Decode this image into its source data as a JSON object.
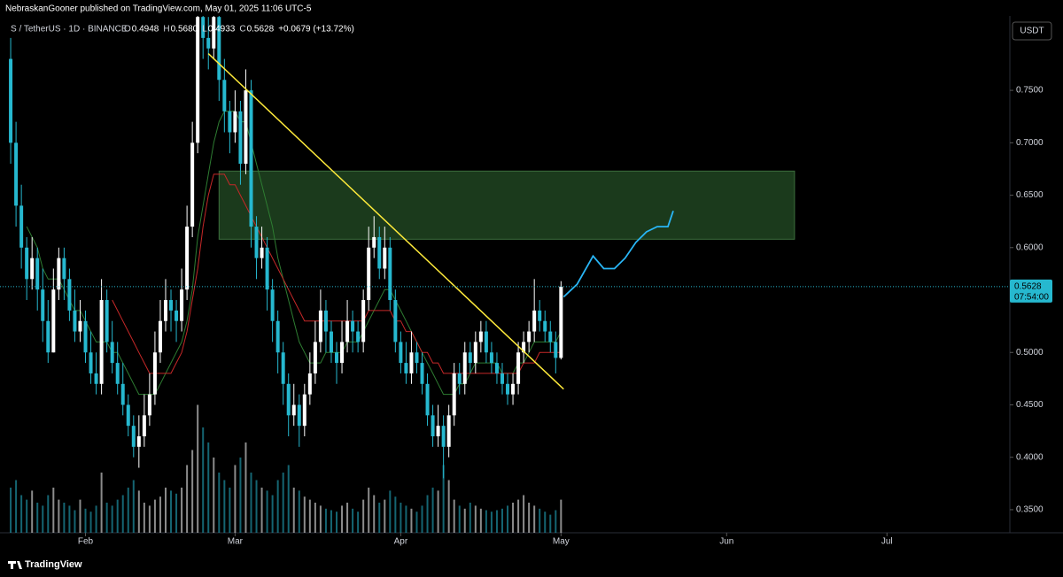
{
  "header": {
    "publisher": "NebraskanGooner published on TradingView.com, May 01, 2025 11:06 UTC-5",
    "symbol": "S / TetherUS · 1D · BINANCE",
    "items": [
      {
        "label": "O",
        "value": "0.4948"
      },
      {
        "label": "H",
        "value": "0.5680"
      },
      {
        "label": "L",
        "value": "0.4933"
      },
      {
        "label": "C",
        "value": "0.5628"
      }
    ],
    "change": "+0.0679 (+13.72%)",
    "currency": "USDT",
    "countdown": "07:54:00",
    "brand": "TradingView"
  },
  "chart_data": {
    "type": "candlestick",
    "xlim": [
      -16,
      173
    ],
    "ylim": [
      0.328,
      0.821
    ],
    "xticks": [
      {
        "value": 0,
        "label": "Feb"
      },
      {
        "value": 28,
        "label": "Mar"
      },
      {
        "value": 59,
        "label": "Apr"
      },
      {
        "value": 89,
        "label": "May"
      },
      {
        "value": 120,
        "label": "Jun"
      },
      {
        "value": 150,
        "label": "Jul"
      }
    ],
    "yticks": [
      {
        "value": 0.35,
        "label": "0.3500"
      },
      {
        "value": 0.4,
        "label": "0.4000"
      },
      {
        "value": 0.45,
        "label": "0.4500"
      },
      {
        "value": 0.5,
        "label": "0.5000"
      },
      {
        "value": 0.55,
        "label": "0.5500"
      },
      {
        "value": 0.6,
        "label": "0.6000"
      },
      {
        "value": 0.65,
        "label": "0.6500"
      },
      {
        "value": 0.7,
        "label": "0.7000"
      },
      {
        "value": 0.75,
        "label": "0.7500"
      }
    ],
    "up_color": "#ffffff",
    "down_color": "#26b8cf",
    "x": [
      -14,
      -13,
      -12,
      -11,
      -10,
      -9,
      -8,
      -7,
      -6,
      -5,
      -4,
      -3,
      -2,
      -1,
      0,
      1,
      2,
      3,
      4,
      5,
      6,
      7,
      8,
      9,
      10,
      11,
      12,
      13,
      14,
      15,
      16,
      17,
      18,
      19,
      20,
      21,
      22,
      23,
      24,
      25,
      26,
      27,
      28,
      29,
      30,
      31,
      32,
      33,
      34,
      35,
      36,
      37,
      38,
      39,
      40,
      41,
      42,
      43,
      44,
      45,
      46,
      47,
      48,
      49,
      50,
      51,
      52,
      53,
      54,
      55,
      56,
      57,
      58,
      59,
      60,
      61,
      62,
      63,
      64,
      65,
      66,
      67,
      68,
      69,
      70,
      71,
      72,
      73,
      74,
      75,
      76,
      77,
      78,
      79,
      80,
      81,
      82,
      83,
      84,
      85,
      86,
      87,
      88,
      89
    ],
    "open": [
      0.78,
      0.7,
      0.64,
      0.6,
      0.57,
      0.59,
      0.56,
      0.53,
      0.5,
      0.56,
      0.59,
      0.57,
      0.54,
      0.52,
      0.53,
      0.5,
      0.48,
      0.47,
      0.55,
      0.51,
      0.49,
      0.47,
      0.45,
      0.43,
      0.41,
      0.42,
      0.44,
      0.46,
      0.5,
      0.53,
      0.55,
      0.54,
      0.53,
      0.56,
      0.62,
      0.7,
      0.82,
      0.8,
      0.79,
      0.82,
      0.76,
      0.73,
      0.71,
      0.73,
      0.68,
      0.75,
      0.62,
      0.59,
      0.6,
      0.56,
      0.53,
      0.5,
      0.47,
      0.44,
      0.45,
      0.43,
      0.46,
      0.48,
      0.51,
      0.54,
      0.52,
      0.5,
      0.49,
      0.51,
      0.53,
      0.52,
      0.51,
      0.55,
      0.6,
      0.61,
      0.58,
      0.6,
      0.55,
      0.51,
      0.49,
      0.48,
      0.5,
      0.49,
      0.47,
      0.44,
      0.42,
      0.43,
      0.41,
      0.44,
      0.48,
      0.47,
      0.5,
      0.49,
      0.51,
      0.52,
      0.5,
      0.49,
      0.48,
      0.47,
      0.46,
      0.47,
      0.5,
      0.51,
      0.52,
      0.54,
      0.53,
      0.52,
      0.51,
      0.4948
    ],
    "high": [
      0.8,
      0.72,
      0.66,
      0.61,
      0.61,
      0.6,
      0.58,
      0.55,
      0.58,
      0.6,
      0.6,
      0.58,
      0.56,
      0.55,
      0.54,
      0.52,
      0.5,
      0.57,
      0.56,
      0.53,
      0.51,
      0.49,
      0.46,
      0.44,
      0.44,
      0.46,
      0.48,
      0.52,
      0.55,
      0.57,
      0.56,
      0.55,
      0.58,
      0.64,
      0.72,
      0.84,
      0.84,
      0.82,
      0.84,
      0.83,
      0.78,
      0.74,
      0.75,
      0.74,
      0.77,
      0.76,
      0.63,
      0.62,
      0.61,
      0.57,
      0.54,
      0.51,
      0.48,
      0.47,
      0.46,
      0.47,
      0.5,
      0.53,
      0.56,
      0.55,
      0.53,
      0.51,
      0.53,
      0.55,
      0.54,
      0.53,
      0.56,
      0.62,
      0.63,
      0.62,
      0.62,
      0.61,
      0.56,
      0.52,
      0.51,
      0.52,
      0.51,
      0.5,
      0.48,
      0.45,
      0.45,
      0.44,
      0.45,
      0.49,
      0.49,
      0.51,
      0.51,
      0.52,
      0.53,
      0.53,
      0.51,
      0.5,
      0.49,
      0.48,
      0.48,
      0.51,
      0.52,
      0.53,
      0.57,
      0.55,
      0.54,
      0.53,
      0.52,
      0.568
    ],
    "low": [
      0.68,
      0.62,
      0.58,
      0.55,
      0.56,
      0.54,
      0.51,
      0.49,
      0.5,
      0.55,
      0.55,
      0.53,
      0.51,
      0.51,
      0.49,
      0.47,
      0.46,
      0.46,
      0.5,
      0.48,
      0.46,
      0.44,
      0.42,
      0.4,
      0.39,
      0.41,
      0.43,
      0.45,
      0.49,
      0.52,
      0.52,
      0.51,
      0.52,
      0.55,
      0.61,
      0.69,
      0.78,
      0.77,
      0.78,
      0.74,
      0.71,
      0.69,
      0.7,
      0.66,
      0.67,
      0.6,
      0.57,
      0.58,
      0.54,
      0.51,
      0.48,
      0.45,
      0.42,
      0.43,
      0.41,
      0.42,
      0.45,
      0.47,
      0.5,
      0.5,
      0.49,
      0.47,
      0.48,
      0.5,
      0.5,
      0.5,
      0.5,
      0.54,
      0.59,
      0.57,
      0.57,
      0.54,
      0.5,
      0.48,
      0.47,
      0.47,
      0.48,
      0.46,
      0.43,
      0.41,
      0.41,
      0.38,
      0.4,
      0.43,
      0.46,
      0.46,
      0.48,
      0.48,
      0.5,
      0.49,
      0.48,
      0.47,
      0.46,
      0.45,
      0.45,
      0.46,
      0.49,
      0.5,
      0.51,
      0.52,
      0.51,
      0.5,
      0.48,
      0.4933
    ],
    "close": [
      0.7,
      0.64,
      0.6,
      0.57,
      0.59,
      0.56,
      0.53,
      0.5,
      0.56,
      0.59,
      0.57,
      0.54,
      0.52,
      0.53,
      0.5,
      0.48,
      0.47,
      0.55,
      0.51,
      0.49,
      0.47,
      0.45,
      0.43,
      0.41,
      0.42,
      0.44,
      0.46,
      0.5,
      0.53,
      0.55,
      0.54,
      0.53,
      0.56,
      0.62,
      0.7,
      0.82,
      0.8,
      0.79,
      0.82,
      0.76,
      0.73,
      0.71,
      0.73,
      0.68,
      0.75,
      0.62,
      0.59,
      0.6,
      0.56,
      0.53,
      0.5,
      0.47,
      0.44,
      0.45,
      0.43,
      0.46,
      0.48,
      0.51,
      0.54,
      0.52,
      0.5,
      0.49,
      0.51,
      0.53,
      0.52,
      0.51,
      0.55,
      0.6,
      0.61,
      0.58,
      0.6,
      0.55,
      0.51,
      0.49,
      0.48,
      0.5,
      0.49,
      0.47,
      0.44,
      0.42,
      0.43,
      0.41,
      0.44,
      0.48,
      0.47,
      0.5,
      0.49,
      0.51,
      0.52,
      0.5,
      0.49,
      0.48,
      0.47,
      0.46,
      0.47,
      0.5,
      0.51,
      0.52,
      0.54,
      0.53,
      0.52,
      0.51,
      0.4948,
      0.5628
    ],
    "volume_lim": [
      0,
      100
    ],
    "volume": [
      30,
      35,
      25,
      22,
      28,
      20,
      18,
      25,
      30,
      22,
      20,
      18,
      15,
      22,
      16,
      14,
      18,
      40,
      20,
      18,
      22,
      25,
      30,
      35,
      28,
      20,
      18,
      22,
      24,
      30,
      28,
      26,
      30,
      45,
      55,
      85,
      70,
      60,
      50,
      40,
      35,
      30,
      45,
      50,
      60,
      40,
      35,
      30,
      28,
      25,
      35,
      40,
      45,
      30,
      28,
      24,
      22,
      20,
      18,
      16,
      15,
      14,
      18,
      20,
      16,
      14,
      22,
      30,
      25,
      20,
      22,
      28,
      24,
      20,
      18,
      16,
      14,
      18,
      25,
      30,
      28,
      45,
      35,
      22,
      18,
      16,
      20,
      18,
      16,
      15,
      14,
      15,
      16,
      18,
      20,
      22,
      25,
      20,
      18,
      16,
      14,
      12,
      15,
      22
    ],
    "lines": [
      {
        "color": "#2e7d32",
        "values": [
          null,
          null,
          null,
          0.62,
          0.61,
          0.6,
          0.58,
          0.57,
          0.57,
          0.57,
          0.56,
          0.55,
          0.54,
          0.54,
          0.53,
          0.52,
          0.51,
          0.51,
          0.51,
          0.5,
          0.5,
          0.49,
          0.48,
          0.47,
          0.46,
          0.46,
          0.46,
          0.46,
          0.47,
          0.48,
          0.49,
          0.5,
          0.51,
          0.53,
          0.56,
          0.61,
          0.64,
          0.67,
          0.7,
          0.72,
          0.73,
          0.73,
          0.73,
          0.72,
          0.72,
          0.7,
          0.68,
          0.66,
          0.64,
          0.62,
          0.59,
          0.57,
          0.55,
          0.53,
          0.51,
          0.5,
          0.49,
          0.49,
          0.49,
          0.5,
          0.5,
          0.5,
          0.5,
          0.51,
          0.51,
          0.51,
          0.52,
          0.53,
          0.54,
          0.55,
          0.56,
          0.56,
          0.55,
          0.54,
          0.53,
          0.52,
          0.51,
          0.5,
          0.49,
          0.48,
          0.47,
          0.46,
          0.46,
          0.46,
          0.47,
          0.47,
          0.48,
          0.49,
          0.49,
          0.49,
          0.49,
          0.49,
          0.48,
          0.48,
          0.48,
          0.49,
          0.49,
          0.5,
          0.51,
          0.51,
          0.51,
          0.51,
          0.51,
          0.52
        ]
      },
      {
        "color": "#c62828",
        "values": [
          null,
          null,
          null,
          null,
          null,
          null,
          null,
          null,
          null,
          null,
          null,
          null,
          null,
          null,
          null,
          null,
          null,
          null,
          null,
          0.55,
          0.54,
          0.53,
          0.52,
          0.51,
          0.5,
          0.49,
          0.48,
          0.48,
          0.48,
          0.48,
          0.48,
          0.49,
          0.5,
          0.52,
          0.55,
          0.58,
          0.62,
          0.65,
          0.67,
          0.67,
          0.67,
          0.66,
          0.66,
          0.65,
          0.64,
          0.63,
          0.62,
          0.61,
          0.6,
          0.59,
          0.58,
          0.57,
          0.56,
          0.55,
          0.54,
          0.53,
          0.53,
          0.53,
          0.53,
          0.53,
          0.53,
          0.53,
          0.53,
          0.53,
          0.53,
          0.53,
          0.53,
          0.54,
          0.54,
          0.54,
          0.54,
          0.54,
          0.53,
          0.53,
          0.52,
          0.52,
          0.51,
          0.5,
          0.5,
          0.49,
          0.49,
          0.48,
          0.48,
          0.48,
          0.48,
          0.48,
          0.48,
          0.48,
          0.48,
          0.48,
          0.48,
          0.48,
          0.48,
          0.48,
          0.48,
          0.48,
          0.49,
          0.49,
          0.49,
          0.5,
          0.5,
          0.5,
          0.5,
          0.5
        ]
      }
    ],
    "trendline": {
      "color": "#ffeb3b",
      "x": [
        23,
        89.5
      ],
      "values": [
        0.785,
        0.465
      ]
    },
    "zone": {
      "x": [
        25,
        132.7
      ],
      "values": [
        0.608,
        0.673
      ]
    },
    "projection": {
      "color": "#29b6f6",
      "x": [
        89.5,
        92,
        95,
        97,
        99,
        101,
        103,
        105,
        107,
        109,
        110
      ],
      "values": [
        0.553,
        0.565,
        0.592,
        0.58,
        0.58,
        0.59,
        0.605,
        0.615,
        0.62,
        0.62,
        0.635
      ]
    }
  }
}
